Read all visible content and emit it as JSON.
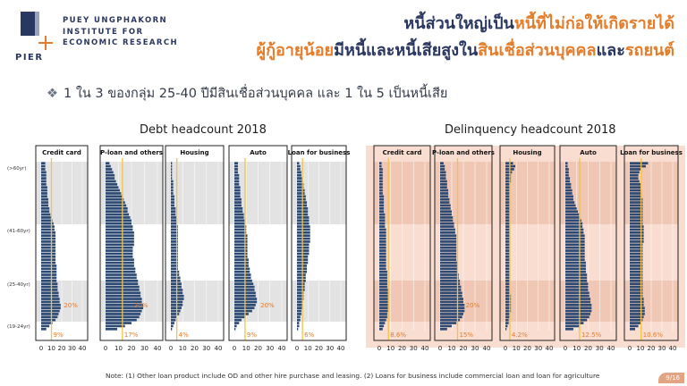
{
  "logo": {
    "mark_text": "PIER",
    "lines": [
      "PUEY UNGPHAKORN",
      "INSTITUTE FOR",
      "ECONOMIC RESEARCH"
    ]
  },
  "header": {
    "line1": [
      {
        "text": "หนี้ส่วนใหญ่เป็น",
        "color": "dark"
      },
      {
        "text": "หนี้ที่ไม่ก่อให้เกิดรายได้",
        "color": "orange"
      }
    ],
    "line2": [
      {
        "text": "ผู้กู้อายุน้อย",
        "color": "orange"
      },
      {
        "text": "มีหนี้และหนี้เสียสูงใน",
        "color": "dark"
      },
      {
        "text": "สินเชื่อส่วนบุคคล",
        "color": "orange"
      },
      {
        "text": "และ",
        "color": "dark"
      },
      {
        "text": "รถยนต์",
        "color": "orange"
      }
    ]
  },
  "bullet": "1 ใน 3 ของกลุ่ม 25-40 ปีมีสินเชื่อส่วนบุคคล และ 1 ใน 5 เป็นหนี้เสีย",
  "footnote": "Note: (1) Other loan product include  OD and other hire purchase and leasing.  (2) Loans for business include commercial loan and loan for agriculture",
  "page_number": "9/16",
  "colors": {
    "bar": "#2d4a74",
    "marker": "#f5c342",
    "annotation": "#e47c2a",
    "band": "#e3e3e3",
    "delinq_bg": "#f9ddd0",
    "delinq_band": "#efc7b4",
    "dark": "#2a3760",
    "orange": "#e47c2a"
  },
  "chart_data": [
    {
      "type": "bar",
      "orientation": "horizontal",
      "title": "Debt headcount 2018",
      "age_group_labels": [
        "(>60yr)",
        "(41-60yr)",
        "(25-40yr)",
        "(19-24yr)"
      ],
      "xlim": [
        0,
        40
      ],
      "xticks": [
        0,
        10,
        20,
        30,
        40
      ],
      "grid": true,
      "panels": [
        {
          "name": "Credit card",
          "mean": 10,
          "annotations": [
            "20%",
            "9%"
          ],
          "values": [
            4,
            4,
            4,
            5,
            5,
            5,
            5,
            5,
            6,
            6,
            6,
            6,
            7,
            7,
            7,
            8,
            8,
            9,
            10,
            11,
            12,
            13,
            13,
            14,
            14,
            14,
            14,
            14,
            14,
            14,
            14,
            14,
            14,
            14,
            15,
            15,
            15,
            15,
            15,
            15,
            16,
            16,
            16,
            17,
            17,
            18,
            18,
            19,
            19,
            18,
            17,
            16,
            14,
            11,
            8,
            5
          ]
        },
        {
          "name": "P-loan and others",
          "mean": 13,
          "annotations": [
            "30%",
            "17%"
          ],
          "values": [
            3,
            4,
            5,
            6,
            7,
            7,
            8,
            9,
            10,
            11,
            12,
            13,
            14,
            15,
            16,
            17,
            17,
            18,
            19,
            20,
            20,
            21,
            21,
            22,
            22,
            22,
            22,
            22,
            21,
            21,
            21,
            21,
            22,
            22,
            22,
            23,
            23,
            24,
            24,
            25,
            25,
            26,
            26,
            27,
            27,
            28,
            28,
            29,
            29,
            28,
            27,
            26,
            24,
            20,
            15,
            9
          ]
        },
        {
          "name": "Housing",
          "mean": 5,
          "annotations": [
            "4%"
          ],
          "values": [
            1,
            1,
            1,
            1,
            1,
            1,
            2,
            2,
            2,
            2,
            2,
            3,
            3,
            3,
            3,
            4,
            4,
            4,
            5,
            5,
            5,
            6,
            6,
            6,
            6,
            6,
            6,
            6,
            6,
            6,
            6,
            6,
            6,
            6,
            6,
            6,
            7,
            7,
            8,
            8,
            9,
            9,
            10,
            10,
            11,
            11,
            10,
            10,
            9,
            8,
            7,
            5,
            4,
            3,
            2,
            1
          ]
        },
        {
          "name": "Auto",
          "mean": 9,
          "annotations": [
            "20%",
            "9%"
          ],
          "values": [
            3,
            3,
            3,
            3,
            4,
            4,
            4,
            4,
            5,
            5,
            5,
            5,
            6,
            6,
            6,
            7,
            7,
            8,
            8,
            9,
            9,
            10,
            10,
            10,
            11,
            11,
            11,
            11,
            11,
            11,
            11,
            11,
            12,
            12,
            12,
            13,
            13,
            14,
            14,
            15,
            16,
            17,
            17,
            18,
            18,
            19,
            19,
            18,
            17,
            15,
            12,
            9,
            6,
            4,
            2,
            1
          ]
        },
        {
          "name": "Loan for business",
          "mean": 5,
          "annotations": [
            "6%"
          ],
          "values": [
            2,
            3,
            3,
            4,
            4,
            5,
            5,
            6,
            6,
            7,
            7,
            8,
            8,
            9,
            9,
            10,
            10,
            10,
            11,
            11,
            11,
            12,
            12,
            12,
            12,
            12,
            12,
            11,
            11,
            11,
            11,
            10,
            10,
            10,
            9,
            9,
            9,
            8,
            8,
            8,
            7,
            7,
            7,
            6,
            6,
            6,
            5,
            5,
            5,
            4,
            4,
            3,
            3,
            2,
            2,
            1
          ]
        }
      ]
    },
    {
      "type": "bar",
      "orientation": "horizontal",
      "title": "Delinquency headcount 2018",
      "xlim": [
        0,
        40
      ],
      "xticks": [
        0,
        10,
        20,
        30,
        40
      ],
      "grid": true,
      "panels": [
        {
          "name": "Credit card",
          "mean": 8,
          "annotations": [
            "8.6%"
          ],
          "values": [
            2,
            2,
            3,
            3,
            3,
            3,
            3,
            3,
            3,
            3,
            3,
            4,
            4,
            4,
            4,
            4,
            4,
            5,
            5,
            5,
            5,
            5,
            6,
            6,
            6,
            6,
            6,
            6,
            6,
            6,
            6,
            6,
            6,
            6,
            6,
            6,
            7,
            7,
            7,
            7,
            7,
            7,
            8,
            8,
            8,
            8,
            8,
            8,
            8,
            8,
            7,
            7,
            6,
            5,
            4,
            3
          ]
        },
        {
          "name": "P-loan and others",
          "mean": 15,
          "annotations": [
            "20%",
            "15%"
          ],
          "values": [
            3,
            4,
            4,
            5,
            5,
            5,
            6,
            6,
            6,
            7,
            7,
            7,
            8,
            8,
            9,
            9,
            10,
            10,
            11,
            11,
            12,
            12,
            13,
            13,
            14,
            14,
            14,
            14,
            14,
            14,
            14,
            14,
            14,
            15,
            15,
            15,
            15,
            16,
            16,
            17,
            17,
            18,
            18,
            19,
            19,
            20,
            20,
            21,
            21,
            21,
            20,
            19,
            17,
            14,
            10,
            6
          ]
        },
        {
          "name": "Housing",
          "mean": 4,
          "annotations": [
            "4.2%"
          ],
          "values": [
            7,
            9,
            8,
            6,
            5,
            5,
            5,
            4,
            4,
            4,
            4,
            4,
            4,
            4,
            4,
            4,
            4,
            4,
            4,
            4,
            4,
            4,
            4,
            4,
            4,
            4,
            4,
            4,
            4,
            4,
            4,
            4,
            4,
            4,
            4,
            4,
            4,
            4,
            4,
            4,
            4,
            4,
            4,
            4,
            5,
            5,
            5,
            5,
            5,
            5,
            4,
            4,
            3,
            3,
            2,
            1
          ]
        },
        {
          "name": "Auto",
          "mean": 12.5,
          "annotations": [
            "12.5%"
          ],
          "values": [
            2,
            2,
            3,
            3,
            3,
            4,
            4,
            5,
            5,
            6,
            6,
            7,
            7,
            8,
            9,
            10,
            11,
            12,
            13,
            14,
            15,
            15,
            16,
            16,
            17,
            17,
            17,
            17,
            17,
            17,
            17,
            17,
            17,
            18,
            18,
            18,
            18,
            19,
            19,
            19,
            20,
            20,
            20,
            21,
            21,
            22,
            22,
            23,
            23,
            23,
            22,
            21,
            19,
            16,
            12,
            7
          ]
        },
        {
          "name": "Loan for business",
          "mean": 10.6,
          "annotations": [
            "10.6%"
          ],
          "values": [
            17,
            15,
            10,
            9,
            8,
            8,
            9,
            10,
            10,
            11,
            11,
            11,
            12,
            12,
            12,
            12,
            12,
            12,
            12,
            12,
            12,
            13,
            13,
            13,
            13,
            13,
            13,
            12,
            12,
            12,
            12,
            12,
            12,
            12,
            12,
            12,
            12,
            12,
            12,
            12,
            12,
            12,
            12,
            12,
            12,
            13,
            13,
            13,
            14,
            14,
            14,
            13,
            12,
            10,
            8,
            5
          ]
        }
      ]
    }
  ]
}
